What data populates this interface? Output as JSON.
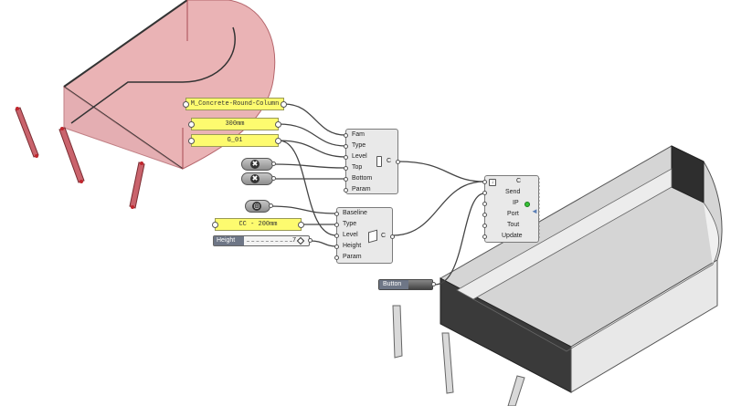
{
  "panels": {
    "family_name": "M_Concrete-Round-Column",
    "type_size": "300mm",
    "level_name": "G_01",
    "wall_type": "CC - 200mm"
  },
  "column_component": {
    "inputs": [
      "Fam",
      "Type",
      "Level",
      "Top",
      "Bottom",
      "Param"
    ],
    "output": "C"
  },
  "wall_component": {
    "inputs": [
      "Baseline",
      "Type",
      "Level",
      "Height",
      "Param"
    ],
    "output": "C"
  },
  "send_component": {
    "inputs": [
      "C",
      "Send",
      "IP",
      "Port",
      "Tout",
      "Update"
    ]
  },
  "height_slider": {
    "label": "Height",
    "value": "7"
  },
  "button": {
    "label": "Button"
  },
  "colors": {
    "preview_fill": "#e7a6a9",
    "preview_edge": "#a84b52",
    "panel_yellow": "#fdfb6f",
    "wall_dark": "#3a3a3a",
    "wall_light": "#d5d5d5",
    "indicator_green": "#35c235"
  },
  "icons": {
    "column_mid": "column-icon",
    "wall_mid": "wall-icon",
    "null_1": "close-icon",
    "null_2": "close-icon",
    "curve_param": "curve-icon"
  }
}
